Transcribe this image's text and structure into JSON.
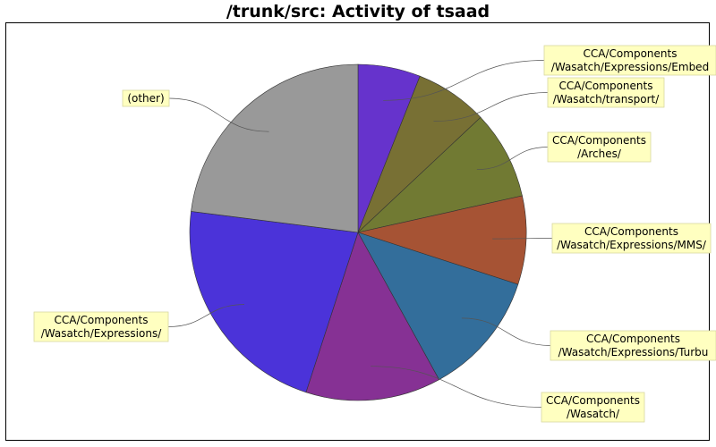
{
  "title": "/trunk/src: Activity of tsaad",
  "chart_data": {
    "type": "pie",
    "title": "/trunk/src: Activity of tsaad",
    "slices": [
      {
        "label": [
          "CCA/Components",
          "/Wasatch/Expressions/Embed"
        ],
        "value": 6,
        "color": "#6633cc"
      },
      {
        "label": [
          "CCA/Components",
          "/Wasatch/transport/"
        ],
        "value": 7,
        "color": "#787034"
      },
      {
        "label": [
          "CCA/Components",
          "/Arches/"
        ],
        "value": 8.5,
        "color": "#717a33"
      },
      {
        "label": [
          "CCA/Components",
          "/Wasatch/Expressions/MMS/"
        ],
        "value": 8.5,
        "color": "#a65334"
      },
      {
        "label": [
          "CCA/Components",
          "/Wasatch/Expressions/Turbu"
        ],
        "value": 12,
        "color": "#336e9b"
      },
      {
        "label": [
          "CCA/Components",
          "/Wasatch/"
        ],
        "value": 13,
        "color": "#863194"
      },
      {
        "label": [
          "CCA/Components",
          "/Wasatch/Expressions/"
        ],
        "value": 22,
        "color": "#4b33d9"
      },
      {
        "label": [
          "(other)"
        ],
        "value": 23,
        "color": "#999999"
      }
    ],
    "legend": "none",
    "start_angle": "12 o'clock, clockwise"
  }
}
